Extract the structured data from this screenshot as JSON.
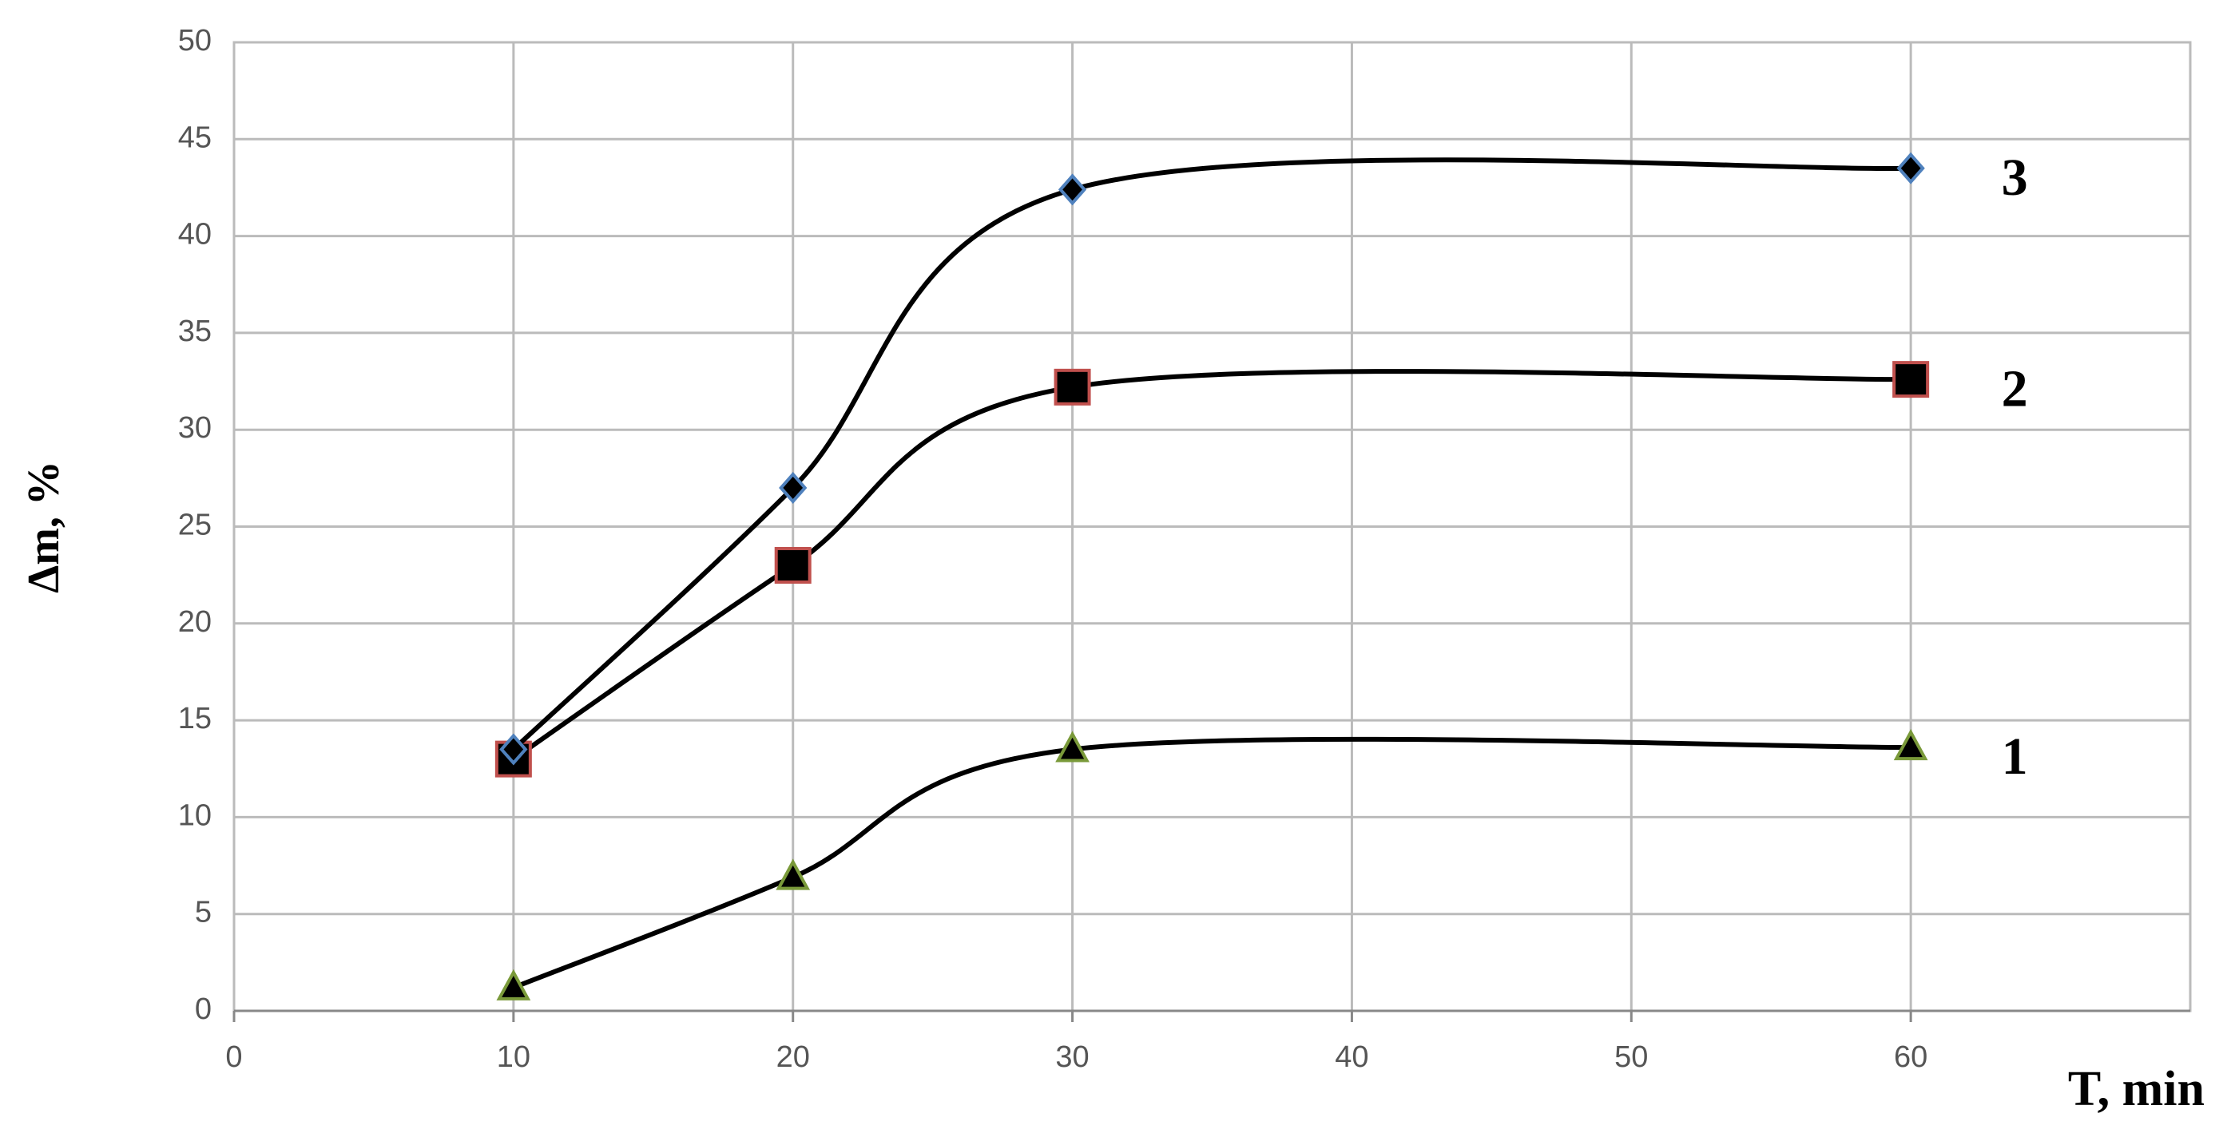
{
  "chart_data": {
    "type": "line",
    "x": [
      10,
      20,
      30,
      60
    ],
    "series": [
      {
        "name": "1",
        "color": "#000000",
        "marker": "triangle",
        "marker_edge": "#7a9a3a",
        "values": [
          1.2,
          6.9,
          13.5,
          13.6
        ]
      },
      {
        "name": "2",
        "color": "#000000",
        "marker": "square",
        "marker_edge": "#c0504d",
        "values": [
          13,
          23,
          32.2,
          32.6
        ]
      },
      {
        "name": "3",
        "color": "#000000",
        "marker": "diamond",
        "marker_edge": "#4f81bd",
        "values": [
          13.5,
          27,
          42.4,
          43.5
        ]
      }
    ],
    "xlabel": "T, min",
    "ylabel": "Δm, %",
    "xlim": [
      0,
      70
    ],
    "xticks": [
      0,
      10,
      20,
      30,
      40,
      50,
      60
    ],
    "ylim": [
      0,
      50
    ],
    "yticks": [
      0,
      5,
      10,
      15,
      20,
      25,
      30,
      35,
      40,
      45,
      50
    ],
    "grid": true,
    "smooth": true
  }
}
